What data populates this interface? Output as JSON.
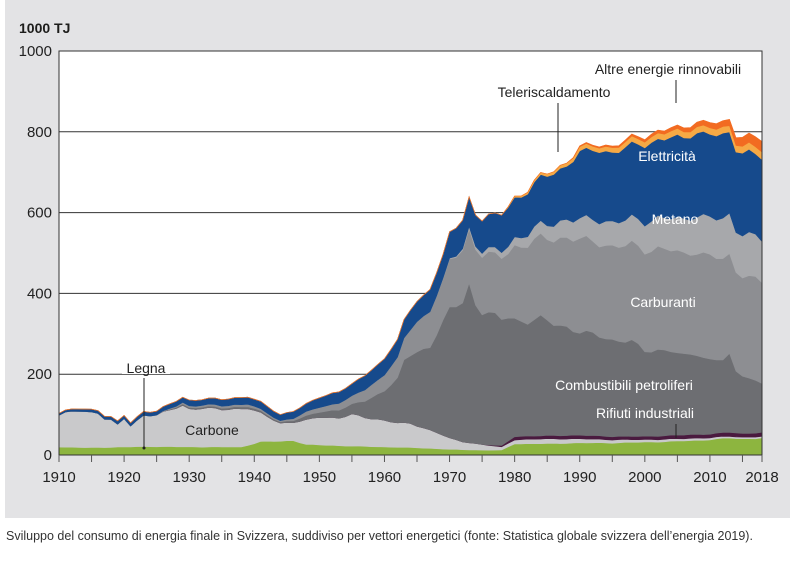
{
  "panel": {
    "unit_label": "1000 TJ"
  },
  "caption": "Sviluppo del consumo di energia finale in Svizzera, suddiviso per vettori energetici (fonte: Statistica globale svizzera dell’energia 2019).",
  "chart_data": {
    "type": "area",
    "stacked": true,
    "title": "",
    "xlabel": "",
    "ylabel": "1000 TJ",
    "xlim": [
      1910,
      2018
    ],
    "ylim": [
      0,
      1000
    ],
    "x_ticks": [
      1910,
      1920,
      1930,
      1940,
      1950,
      1960,
      1970,
      1980,
      1990,
      2000,
      2010,
      2018
    ],
    "y_ticks": [
      0,
      200,
      400,
      600,
      800,
      1000
    ],
    "grid": "horizontal",
    "series": [
      {
        "name": "Legna",
        "color": "#8db53f",
        "points": [
          [
            1910,
            20
          ],
          [
            1915,
            18
          ],
          [
            1920,
            20
          ],
          [
            1925,
            21
          ],
          [
            1930,
            20
          ],
          [
            1935,
            20
          ],
          [
            1938,
            20
          ],
          [
            1941,
            33
          ],
          [
            1944,
            34
          ],
          [
            1946,
            36
          ],
          [
            1948,
            26
          ],
          [
            1950,
            25
          ],
          [
            1955,
            22
          ],
          [
            1960,
            20
          ],
          [
            1965,
            18
          ],
          [
            1970,
            14
          ],
          [
            1975,
            12
          ],
          [
            1978,
            12
          ],
          [
            1979,
            20
          ],
          [
            1980,
            28
          ],
          [
            1985,
            28
          ],
          [
            1990,
            30
          ],
          [
            1995,
            30
          ],
          [
            2000,
            32
          ],
          [
            2005,
            34
          ],
          [
            2010,
            38
          ],
          [
            2013,
            42
          ],
          [
            2015,
            40
          ],
          [
            2018,
            42
          ]
        ]
      },
      {
        "name": "Carbone",
        "color": "#c9c9cb",
        "points": [
          [
            1910,
            80
          ],
          [
            1911,
            85
          ],
          [
            1913,
            90
          ],
          [
            1916,
            86
          ],
          [
            1917,
            72
          ],
          [
            1918,
            68
          ],
          [
            1919,
            55
          ],
          [
            1920,
            70
          ],
          [
            1921,
            52
          ],
          [
            1923,
            78
          ],
          [
            1925,
            78
          ],
          [
            1927,
            90
          ],
          [
            1929,
            103
          ],
          [
            1930,
            94
          ],
          [
            1932,
            96
          ],
          [
            1935,
            93
          ],
          [
            1938,
            95
          ],
          [
            1939,
            92
          ],
          [
            1941,
            70
          ],
          [
            1944,
            45
          ],
          [
            1946,
            45
          ],
          [
            1948,
            60
          ],
          [
            1950,
            70
          ],
          [
            1953,
            68
          ],
          [
            1955,
            78
          ],
          [
            1958,
            70
          ],
          [
            1960,
            65
          ],
          [
            1962,
            60
          ],
          [
            1964,
            60
          ],
          [
            1966,
            50
          ],
          [
            1968,
            40
          ],
          [
            1970,
            28
          ],
          [
            1972,
            20
          ],
          [
            1975,
            14
          ],
          [
            1978,
            8
          ],
          [
            1980,
            10
          ],
          [
            1985,
            12
          ],
          [
            1990,
            10
          ],
          [
            1995,
            8
          ],
          [
            2000,
            6
          ],
          [
            2005,
            6
          ],
          [
            2010,
            5
          ],
          [
            2015,
            4
          ],
          [
            2018,
            4
          ]
        ]
      },
      {
        "name": "Rifiuti industriali",
        "color": "#4a1a3f",
        "points": [
          [
            1910,
            0
          ],
          [
            1975,
            0
          ],
          [
            1978,
            3
          ],
          [
            1980,
            8
          ],
          [
            1985,
            8
          ],
          [
            1990,
            9
          ],
          [
            1995,
            8
          ],
          [
            2000,
            8
          ],
          [
            2005,
            9
          ],
          [
            2010,
            9
          ],
          [
            2013,
            10
          ],
          [
            2015,
            9
          ],
          [
            2018,
            10
          ]
        ]
      },
      {
        "name": "Combustibili petroliferi",
        "color": "#6d6e72",
        "points": [
          [
            1910,
            0
          ],
          [
            1925,
            0
          ],
          [
            1929,
            3
          ],
          [
            1935,
            4
          ],
          [
            1939,
            5
          ],
          [
            1944,
            3
          ],
          [
            1946,
            5
          ],
          [
            1948,
            10
          ],
          [
            1950,
            12
          ],
          [
            1952,
            18
          ],
          [
            1955,
            25
          ],
          [
            1957,
            40
          ],
          [
            1960,
            75
          ],
          [
            1962,
            110
          ],
          [
            1963,
            155
          ],
          [
            1965,
            180
          ],
          [
            1967,
            210
          ],
          [
            1969,
            280
          ],
          [
            1970,
            320
          ],
          [
            1972,
            340
          ],
          [
            1973,
            390
          ],
          [
            1974,
            350
          ],
          [
            1975,
            330
          ],
          [
            1977,
            320
          ],
          [
            1979,
            305
          ],
          [
            1980,
            290
          ],
          [
            1982,
            285
          ],
          [
            1984,
            290
          ],
          [
            1986,
            275
          ],
          [
            1988,
            270
          ],
          [
            1990,
            255
          ],
          [
            1992,
            250
          ],
          [
            1995,
            240
          ],
          [
            1998,
            235
          ],
          [
            2000,
            210
          ],
          [
            2002,
            215
          ],
          [
            2004,
            210
          ],
          [
            2006,
            195
          ],
          [
            2008,
            200
          ],
          [
            2010,
            185
          ],
          [
            2012,
            180
          ],
          [
            2013,
            190
          ],
          [
            2014,
            150
          ],
          [
            2016,
            140
          ],
          [
            2018,
            120
          ]
        ]
      },
      {
        "name": "Carburanti",
        "color": "#8d8e92",
        "points": [
          [
            1910,
            0
          ],
          [
            1925,
            0
          ],
          [
            1929,
            4
          ],
          [
            1935,
            5
          ],
          [
            1939,
            6
          ],
          [
            1944,
            3
          ],
          [
            1946,
            5
          ],
          [
            1948,
            10
          ],
          [
            1950,
            12
          ],
          [
            1952,
            15
          ],
          [
            1955,
            20
          ],
          [
            1957,
            28
          ],
          [
            1960,
            40
          ],
          [
            1962,
            50
          ],
          [
            1963,
            55
          ],
          [
            1965,
            75
          ],
          [
            1967,
            90
          ],
          [
            1969,
            100
          ],
          [
            1970,
            120
          ],
          [
            1972,
            130
          ],
          [
            1973,
            135
          ],
          [
            1974,
            140
          ],
          [
            1975,
            140
          ],
          [
            1977,
            150
          ],
          [
            1979,
            160
          ],
          [
            1980,
            180
          ],
          [
            1982,
            190
          ],
          [
            1984,
            200
          ],
          [
            1986,
            210
          ],
          [
            1988,
            220
          ],
          [
            1990,
            230
          ],
          [
            1992,
            230
          ],
          [
            1995,
            230
          ],
          [
            1998,
            240
          ],
          [
            2000,
            250
          ],
          [
            2002,
            250
          ],
          [
            2004,
            250
          ],
          [
            2006,
            250
          ],
          [
            2008,
            255
          ],
          [
            2010,
            255
          ],
          [
            2012,
            250
          ],
          [
            2013,
            245
          ],
          [
            2014,
            250
          ],
          [
            2016,
            250
          ],
          [
            2018,
            250
          ]
        ]
      },
      {
        "name": "Metano",
        "color": "#a7a8ab",
        "points": [
          [
            1910,
            0
          ],
          [
            1968,
            0
          ],
          [
            1970,
            2
          ],
          [
            1972,
            4
          ],
          [
            1973,
            6
          ],
          [
            1975,
            10
          ],
          [
            1978,
            15
          ],
          [
            1980,
            20
          ],
          [
            1983,
            30
          ],
          [
            1985,
            35
          ],
          [
            1988,
            45
          ],
          [
            1990,
            50
          ],
          [
            1992,
            55
          ],
          [
            1995,
            60
          ],
          [
            1998,
            65
          ],
          [
            2000,
            70
          ],
          [
            2002,
            75
          ],
          [
            2004,
            80
          ],
          [
            2006,
            85
          ],
          [
            2008,
            90
          ],
          [
            2010,
            95
          ],
          [
            2012,
            100
          ],
          [
            2013,
            100
          ],
          [
            2014,
            100
          ],
          [
            2016,
            105
          ],
          [
            2018,
            105
          ]
        ]
      },
      {
        "name": "Elettricità",
        "color": "#164a8c",
        "points": [
          [
            1910,
            5
          ],
          [
            1913,
            6
          ],
          [
            1916,
            7
          ],
          [
            1919,
            8
          ],
          [
            1920,
            8
          ],
          [
            1923,
            9
          ],
          [
            1925,
            10
          ],
          [
            1929,
            13
          ],
          [
            1930,
            14
          ],
          [
            1935,
            16
          ],
          [
            1939,
            18
          ],
          [
            1941,
            18
          ],
          [
            1944,
            15
          ],
          [
            1946,
            18
          ],
          [
            1948,
            20
          ],
          [
            1950,
            24
          ],
          [
            1952,
            28
          ],
          [
            1955,
            30
          ],
          [
            1957,
            35
          ],
          [
            1960,
            40
          ],
          [
            1962,
            45
          ],
          [
            1963,
            45
          ],
          [
            1965,
            50
          ],
          [
            1967,
            55
          ],
          [
            1969,
            60
          ],
          [
            1970,
            65
          ],
          [
            1972,
            70
          ],
          [
            1973,
            75
          ],
          [
            1974,
            78
          ],
          [
            1975,
            80
          ],
          [
            1977,
            85
          ],
          [
            1979,
            95
          ],
          [
            1980,
            100
          ],
          [
            1982,
            105
          ],
          [
            1984,
            115
          ],
          [
            1986,
            125
          ],
          [
            1988,
            135
          ],
          [
            1990,
            165
          ],
          [
            1992,
            170
          ],
          [
            1995,
            175
          ],
          [
            1998,
            180
          ],
          [
            2000,
            190
          ],
          [
            2002,
            195
          ],
          [
            2004,
            200
          ],
          [
            2006,
            200
          ],
          [
            2008,
            205
          ],
          [
            2010,
            210
          ],
          [
            2012,
            205
          ],
          [
            2013,
            200
          ],
          [
            2014,
            200
          ],
          [
            2016,
            205
          ],
          [
            2018,
            205
          ]
        ]
      },
      {
        "name": "Teleriscaldamento",
        "color": "#f6a945",
        "points": [
          [
            1910,
            0
          ],
          [
            1978,
            0
          ],
          [
            1980,
            3
          ],
          [
            1985,
            6
          ],
          [
            1990,
            10
          ],
          [
            1995,
            12
          ],
          [
            2000,
            14
          ],
          [
            2005,
            15
          ],
          [
            2010,
            16
          ],
          [
            2013,
            16
          ],
          [
            2015,
            17
          ],
          [
            2018,
            18
          ]
        ]
      },
      {
        "name": "Altre energie rinnovabili",
        "color": "#f26b21",
        "points": [
          [
            1910,
            0
          ],
          [
            1988,
            0
          ],
          [
            1990,
            2
          ],
          [
            1995,
            4
          ],
          [
            2000,
            6
          ],
          [
            2005,
            9
          ],
          [
            2010,
            13
          ],
          [
            2013,
            16
          ],
          [
            2015,
            22
          ],
          [
            2018,
            26
          ]
        ]
      }
    ],
    "labels": [
      {
        "text": "Elettricità",
        "series": "Elettricità",
        "style": "light"
      },
      {
        "text": "Metano",
        "series": "Metano",
        "style": "light"
      },
      {
        "text": "Carburanti",
        "series": "Carburanti",
        "style": "light"
      },
      {
        "text": "Combustibili petroliferi",
        "series": "Combustibili petroliferi",
        "style": "light"
      },
      {
        "text": "Rifiuti industriali",
        "series": "Rifiuti industriali",
        "style": "light"
      },
      {
        "text": "Carbone",
        "series": "Carbone",
        "style": "dark"
      },
      {
        "text": "Legna",
        "series": "Legna",
        "style": "dark"
      },
      {
        "text": "Teleriscaldamento",
        "series": "Teleriscaldamento",
        "style": "dark"
      },
      {
        "text": "Altre energie rinnovabili",
        "series": "Altre energie rinnovabili",
        "style": "dark"
      }
    ]
  }
}
